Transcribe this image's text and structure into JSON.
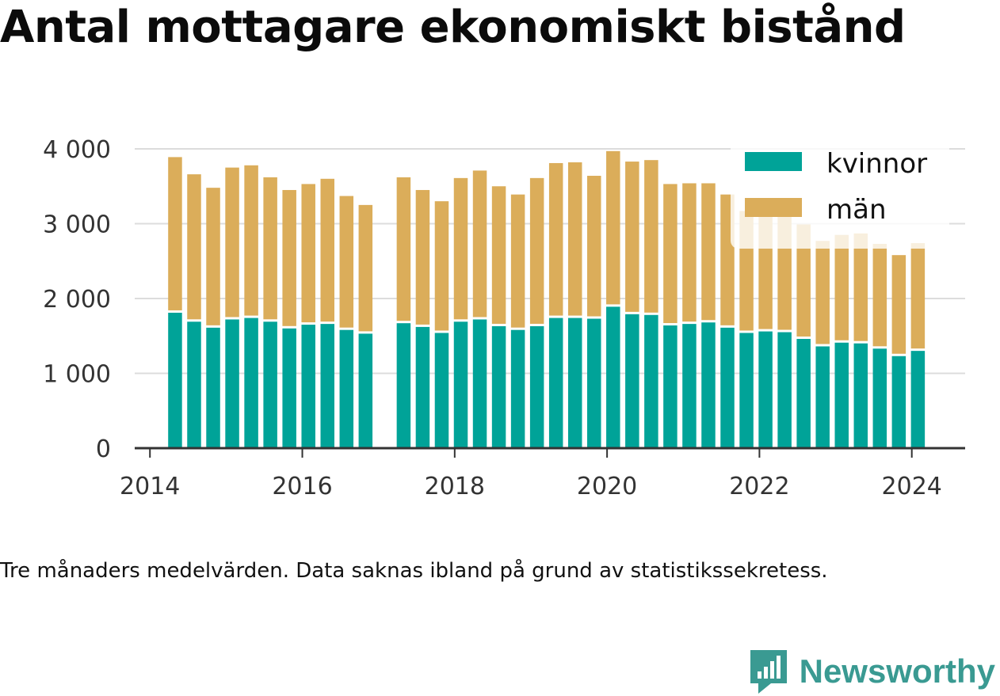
{
  "title": "Antal mottagare ekonomiskt bistånd",
  "caption": "Tre månaders medelvärden. Data saknas ibland på grund av statistikssekretess.",
  "brand": {
    "name": "Newsworthy",
    "logo_icon": "newsworthy-logo-icon",
    "color": "#3a9a92"
  },
  "chart_data": {
    "type": "bar",
    "stacked": true,
    "title": "Antal mottagare ekonomiskt bistånd",
    "xlabel": "",
    "ylabel": "",
    "ylim": [
      0,
      4000
    ],
    "xlim": [
      2013.8,
      2024.7
    ],
    "x_ticks": [
      2014,
      2016,
      2018,
      2020,
      2022,
      2024
    ],
    "x_tick_labels": [
      "2014",
      "2016",
      "2018",
      "2020",
      "2022",
      "2024"
    ],
    "y_ticks": [
      0,
      1000,
      2000,
      3000,
      4000
    ],
    "y_tick_labels": [
      "0",
      "1 000",
      "2 000",
      "3 000",
      "4 000"
    ],
    "grid": true,
    "legend_position": "top-right",
    "x": [
      2014.33,
      2014.58,
      2014.83,
      2015.08,
      2015.33,
      2015.58,
      2015.83,
      2016.08,
      2016.33,
      2016.58,
      2016.83,
      2017.33,
      2017.58,
      2017.83,
      2018.08,
      2018.33,
      2018.58,
      2018.83,
      2019.08,
      2019.33,
      2019.58,
      2019.83,
      2020.08,
      2020.33,
      2020.58,
      2020.83,
      2021.08,
      2021.33,
      2021.58,
      2021.83,
      2022.08,
      2022.33,
      2022.58,
      2022.83,
      2023.08,
      2023.33,
      2023.58,
      2023.83,
      2024.08
    ],
    "series": [
      {
        "name": "kvinnor",
        "color": "#00a398",
        "values": [
          1810,
          1690,
          1610,
          1720,
          1740,
          1690,
          1600,
          1650,
          1660,
          1580,
          1530,
          1670,
          1620,
          1540,
          1690,
          1720,
          1630,
          1580,
          1630,
          1740,
          1740,
          1730,
          1890,
          1790,
          1780,
          1640,
          1660,
          1680,
          1610,
          1540,
          1560,
          1550,
          1460,
          1360,
          1410,
          1400,
          1330,
          1230,
          1300
        ]
      },
      {
        "name": "män",
        "color": "#dbad5a",
        "values": [
          2080,
          1970,
          1870,
          2030,
          2040,
          1930,
          1850,
          1880,
          1940,
          1790,
          1720,
          1950,
          1830,
          1760,
          1920,
          1990,
          1870,
          1810,
          1980,
          2070,
          2080,
          1910,
          2080,
          2040,
          2070,
          1890,
          1880,
          1860,
          1780,
          1630,
          1570,
          1570,
          1530,
          1410,
          1440,
          1470,
          1400,
          1350,
          1440
        ]
      }
    ]
  }
}
